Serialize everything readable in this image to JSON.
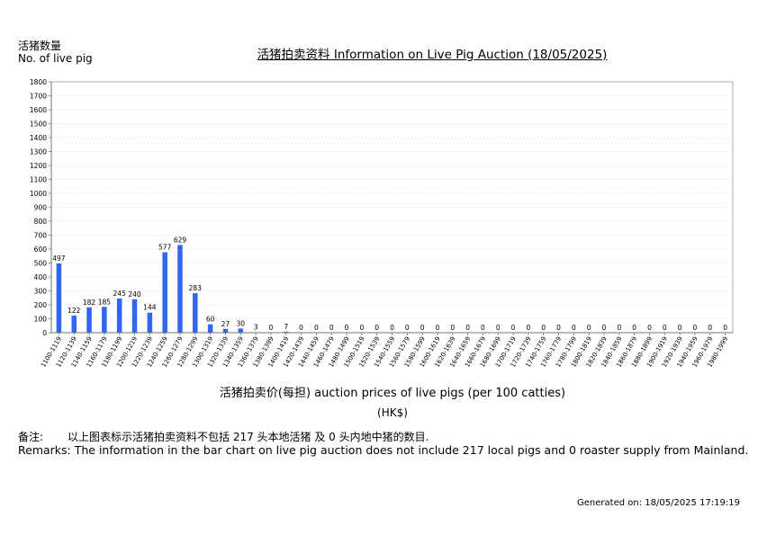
{
  "header": {
    "y_label_cn": "活猪数量",
    "y_label_en": "No. of live pig",
    "title": "活猪拍卖资料 Information on Live Pig Auction (18/05/2025)"
  },
  "axis": {
    "x_title": "活猪拍卖价(每担) auction prices of live pigs (per 100 catties)",
    "unit": "(HK$)"
  },
  "remarks": {
    "cn_label": "备注:",
    "cn_text": "以上图表标示活猪拍卖资料不包括 217 头本地活猪 及 0 头内地中猪的数目.",
    "en_text": "Remarks: The information in the bar chart on live pig auction does not include 217 local pigs and 0 roaster supply from Mainland."
  },
  "footer": {
    "generated": "Generated on: 18/05/2025 17:19:19"
  },
  "chart_data": {
    "type": "bar",
    "color": "#3366ee",
    "ylim": [
      0,
      1800
    ],
    "yticks": [
      0,
      100,
      200,
      300,
      400,
      500,
      600,
      700,
      800,
      900,
      1000,
      1100,
      1200,
      1300,
      1400,
      1500,
      1600,
      1700,
      1800
    ],
    "grid": true,
    "categories": [
      "1100-1119",
      "1120-1139",
      "1140-1159",
      "1160-1179",
      "1180-1199",
      "1200-1219",
      "1220-1239",
      "1240-1259",
      "1260-1279",
      "1280-1299",
      "1300-1319",
      "1320-1339",
      "1340-1359",
      "1360-1379",
      "1380-1399",
      "1400-1419",
      "1420-1439",
      "1440-1459",
      "1460-1479",
      "1480-1499",
      "1500-1519",
      "1520-1539",
      "1540-1559",
      "1560-1579",
      "1580-1599",
      "1600-1619",
      "1620-1639",
      "1640-1659",
      "1660-1679",
      "1680-1699",
      "1700-1719",
      "1720-1739",
      "1740-1759",
      "1760-1779",
      "1780-1799",
      "1800-1819",
      "1820-1839",
      "1840-1859",
      "1860-1879",
      "1880-1899",
      "1900-1919",
      "1920-1939",
      "1940-1959",
      "1960-1979",
      "1980-1999"
    ],
    "values": [
      497,
      122,
      182,
      185,
      245,
      240,
      144,
      577,
      629,
      283,
      60,
      27,
      30,
      3,
      0,
      7,
      0,
      0,
      0,
      0,
      0,
      0,
      0,
      0,
      0,
      0,
      0,
      0,
      0,
      0,
      0,
      0,
      0,
      0,
      0,
      0,
      0,
      0,
      0,
      0,
      0,
      0,
      0,
      0,
      0
    ],
    "title": "活猪拍卖资料 Information on Live Pig Auction (18/05/2025)",
    "xlabel": "活猪拍卖价(每担) auction prices of live pigs (per 100 catties)",
    "ylabel": "活猪数量 No. of live pig"
  }
}
